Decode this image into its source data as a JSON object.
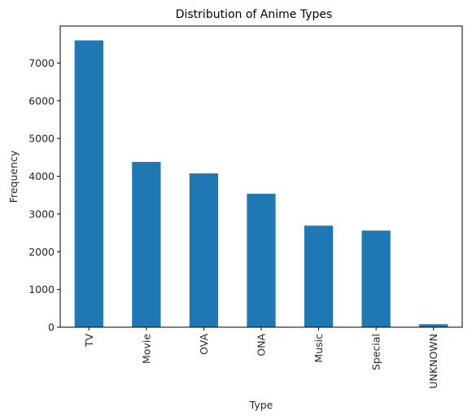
{
  "chart_data": {
    "type": "bar",
    "title": "Distribution of Anime Types",
    "xlabel": "Type",
    "ylabel": "Frequency",
    "categories": [
      "TV",
      "Movie",
      "OVA",
      "ONA",
      "Music",
      "Special",
      "UNKNOWN"
    ],
    "values": [
      7600,
      4380,
      4075,
      3535,
      2690,
      2560,
      80
    ],
    "ylim": [
      0,
      7980
    ],
    "yticks": [
      0,
      1000,
      2000,
      3000,
      4000,
      5000,
      6000,
      7000
    ],
    "bar_color": "#1f77b4",
    "grid": false,
    "legend": "none"
  }
}
